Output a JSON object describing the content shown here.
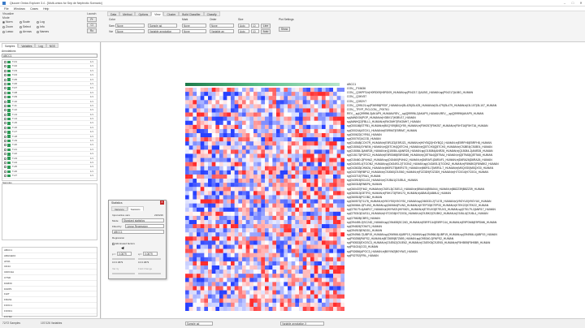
{
  "window": {
    "title": "Qlucore Omics Explorer 3.4 - [Multi-omics for Sep de Nephrotic Scenario]"
  },
  "menu": [
    "File",
    "Windows",
    "Cases",
    "Help"
  ],
  "toolbar": {
    "visualize_label": "Visualize",
    "mode_label": "Mode",
    "modes": [
      "Norm",
      "Scale",
      "Log",
      "Zoom",
      "Select",
      "Info",
      "Lasso",
      "Arrows",
      "Names"
    ],
    "launch_label": "Launch",
    "launch_buttons": [
      "Pr",
      "Cl",
      "Ro"
    ],
    "tabs": [
      "Data",
      "Method",
      "Options",
      "View",
      "Cluster",
      "Build Classifier",
      "Classify"
    ],
    "active_tab": "View",
    "color_label": "Color",
    "mark_label": "Mark",
    "order_label": "Order",
    "size_label": "Size",
    "plot_settings_label": "Plot Settings",
    "samples_label": "Sam",
    "variables_label": "Var",
    "color_sample": "None",
    "color_variable": "None",
    "color_options": "Sample ad",
    "color_annot": "Variable annotation",
    "mark_sample": "None",
    "mark_variable": "None",
    "order_sample": "None",
    "order_variable": "Variable an",
    "size_sample": "Auto",
    "size_sample_val": "10",
    "size_variable": "Auto",
    "size_variable_val": "10",
    "line_btn": "Line",
    "show_btn": "Show",
    "auto_btn": "Auto"
  },
  "left_panel": {
    "tabs": [
      "Samples",
      "Variables",
      "Log",
      "NGS"
    ],
    "annotations_header": "Annotations",
    "filter_value": "ABCC1",
    "annotations": [
      {
        "name": "T-01",
        "value": "1/1"
      },
      {
        "name": "T-02",
        "value": "1/1"
      },
      {
        "name": "T-03",
        "value": "1/1"
      },
      {
        "name": "T-04",
        "value": "1/1"
      },
      {
        "name": "T-05",
        "value": "1/1"
      },
      {
        "name": "T-06",
        "value": "1/1"
      },
      {
        "name": "T-07",
        "value": "1/1"
      },
      {
        "name": "T-08",
        "value": "1/1"
      },
      {
        "name": "T-09",
        "value": "1/1"
      },
      {
        "name": "T-10",
        "value": "1/1"
      },
      {
        "name": "T-11",
        "value": "1/1"
      },
      {
        "name": "T-12",
        "value": "1/1"
      },
      {
        "name": "T-13",
        "value": "1/1"
      },
      {
        "name": "T-14",
        "value": "1/1"
      },
      {
        "name": "T-15",
        "value": "1/1"
      },
      {
        "name": "T-16",
        "value": "1/1"
      },
      {
        "name": "T-17",
        "value": "1/1"
      },
      {
        "name": "T-18",
        "value": "1/1"
      },
      {
        "name": "T-19",
        "value": "1/1"
      },
      {
        "name": "T-20",
        "value": "1/1"
      },
      {
        "name": "T-21",
        "value": "1/1"
      },
      {
        "name": "T-22",
        "value": "1/1"
      },
      {
        "name": "T-23",
        "value": "1/1"
      },
      {
        "name": "T-24",
        "value": "1/1"
      },
      {
        "name": "T-25",
        "value": "1/1"
      },
      {
        "name": "T-26",
        "value": "1/1"
      },
      {
        "name": "T-27",
        "value": "1/1"
      }
    ],
    "samples_header": "Samples",
    "genes": [
      "ABCC1",
      "ARHGEF2",
      "ATPA",
      "CD44",
      "CDKN1A",
      "CTSD",
      "FAM3C",
      "FARP1",
      "FHIT",
      "FRAS1",
      "FOXC1",
      "FOXD1",
      "FXYD2"
    ]
  },
  "status": {
    "left": "72/72 Samples",
    "mid": "107/126 Variables",
    "sel1": "Sample ad",
    "sel2": "Variable annotation X"
  },
  "heatmap": {
    "title": "ABCC1",
    "rows": [
      "ABCC1",
      "CON__P15636",
      "CON__Q3KPF3;tr|H0RD09|H0RD09_HUMAN;sp|P04217-2|A1BG_HUMAN;sp|P04217|A1BG_HUMAN",
      "CON__Q3KV57",
      "CON__Q3S2V7",
      "CON__Q95121;sp|P36955|PEDF_HUMAN;tr|I3L425|I3L425_HUMAN;tr|I3L479|I3L479_HUMAN;tr|I3L107|I3L107_HUMAN",
      "CON__TRYP_PIG;CON__P00761",
      "REV__sp|Q99996-3|AKAP9_HUMAN;REV__sp|Q99996-2|AKAP9_HUMAN;REV__sp|Q99996|AKAP9_HUMAN",
      "sp|A6NDG6|PGP_HUMAN;tr|H3BV17|H3BV17_HUMAN",
      "sp|A6NHQ2|FBLL1_HUMAN;tr|R4GMH7|R4GMH7_HUMAN",
      "sp|O00186|STFB1_HUMAN;tr|B0QY59|B0QY59_HUMAN;tr|F5H257|F5H257_HUMAN;tr|F5H716|F5H716_HUMAN",
      "sp|O00244|ATOX1_HUMAN;tr|E5RIM7|E5RIM7_HUMAN",
      "sp|O00622|CYR61_HUMAN",
      "sp|O00767|ACOD_HUMAN",
      "sp|O14548|COX7R_HUMAN;tr|E5RJZ1|E5RJZ1_HUMAN;tr|H0YBQ2|H0YBQ2_HUMAN;tr|E5RFH8|E5RFH8_HUMAN",
      "sp|O15061|SYNEM_HUMAN;tr|Q5TCH4|Q5TCH4_HUMAN;tr|Q5TCH3|Q5TCH3_HUMAN;tr|C9J8E4|C9J8E4_HUMAN",
      "sp|O15084-3|ANR28_HUMAN;tr|Q15084-4|ANR28_HUMAN;sp|O15084|ANR28_HUMAN;tr|Q15084-2|ANR28_HUMAN",
      "sp|O15173|PGRC2_HUMAN;tr|E5RGM8|E5RGM8_HUMAN;tr|Q5T9A4|Q5T9A4_HUMAN;tr|Q5T9A5|Q5T9A5_HUMAN",
      "sp|O15460-2|P4HA2_HUMAN;sp|O15460|P4HA2_HUMAN;tr|D6RAF1|D6RAF1_HUMAN;tr|D6RA26|D6RA26_HUMAN",
      "sp|O43493-4|TGON2_HUMAN;sp|O43493-2|TGON2_HUMAN;sp|O43493-3|TGON2_HUMAN;tr|F8W8K2|F8W8K2_HUMAN",
      "sp|O43633|CHM2A_HUMAN;tr|M0R1T5|M0R1T5_HUMAN;tr|M0R1L7|M0R1L7_HUMAN;tr|M0QXS0|M0QXS0_HUMAN",
      "sp|O43709|RBP12_HUMAN;tr|C9J060|C9J060_HUMAN;tr|F2Z3D9|F2Z3D9_HUMAN;tr|H7C0G4|H7C0G4_HUMAN",
      "sp|O43715|TRIA1_HUMAN",
      "sp|O43915|SCLD2_HUMAN;tr|C9JBU1|C9JBU1_HUMAN",
      "sp|O60318|RNBP6_HUMAN",
      "sp|O60437|F462_HUMAN;tr|C9JEL3|C9JEL3_HUMAN;tr|B9A044|B9A044_HUMAN;tr|B8ZZ39|B8ZZ39_HUMAN",
      "sp|O60513|GETR3_HUMAN;tr|F5H173|F5H173_HUMAN;tr|A8MU2|A8MU2_HUMAN",
      "sp|O60515|PCOB2_HUMAN",
      "sp|O60573|T1178_HUMAN;tr|V9GYS0|V9GYS0_HUMAN;sp|O60033-2|T1178_HUMAN;tr|V9GYU0|V9GYU0_HUMAN",
      "sp|O60664-2|PLIN3_HUMAN;sp|O60664|PLIN3_HUMAN;tr|K7EP33|K7EP33_HUMAN;tr|K7EK22|K7EK22_HUMAN",
      "sp|O75179-4|ANR17_HUMAN;tr|H0YM21|H0YM21_HUMAN;tr|E7EUV3|E7EUV3_HUMAN;sp|O75179-2|ANR17_HUMAN",
      "sp|O75310|DUS11_HUMAN;tr|H7C0G6|H7C0G6_HUMAN;tr|C9J8K2|C9J8K2_HUMAN;tr|C9J6L4|C9J6L4_HUMAN",
      "sp|O75828|CBR3_HUMAN",
      "sp|O94455-2|SC24D_HUMAN;sp|O94455|SC24D_HUMAN;tr|E5RFC44|E5RFC44_HUMAN;tr|E9PDM6|E9PDM6_HUMAN",
      "sp|O94826|TOM70_HUMAN",
      "sp|O94919|ENDD1_HUMAN",
      "sp|O94966-7|UBP19_HUMAN;sp|O94966-6|UBP19_HUMAN;sp|O94966-5|UBP19_HUMAN;sp|O94966-4|UBP19_HUMAN",
      "sp|P00258|PAPS2_HUMAN;tr|B7Z659|B7Z659_HUMAN;sp|O95340-2|PAPS2_HUMAN",
      "sp|P00533|EXOSC3_HUMAN;tr|C9JE62|C9JE62_HUMAN;tr|C9JEK5|C9JEK5_HUMAN;tr|F5H5B9|F5H5B9_HUMAN",
      "sp|P01024|CO3_HUMAN",
      "sp|P02656|APOC3_HUMAN;tr|B0YIW2|B0YIW2_HUMAN",
      "sp|P02792|FRIL_HUMAN"
    ]
  },
  "stats_dialog": {
    "title": "Statistics",
    "tabs": [
      "Variance",
      "Statistics"
    ],
    "input_active_vars": "Input active vars",
    "input_active_count": "216/216",
    "mode_label": "Mode",
    "mode_value": "Standard statistics",
    "fitted_label": "Fitted by",
    "fitted_value": "Linear Regression",
    "variable_value": "ABCC1",
    "regression_label": "Regression",
    "eliminated_label": "Eliminated factors",
    "p_label": "p =",
    "p_value": "0.0879",
    "q_label": "q =",
    "q_value": "0.0879",
    "p_range": "0.0 0.0879",
    "q_range": "0.0 0.0879",
    "var_label": "Var ity",
    "fold_label": "Fold Change"
  },
  "colors": {
    "red": "#d62c2c",
    "blue": "#2e3fbf",
    "green": "#2e9a56"
  }
}
